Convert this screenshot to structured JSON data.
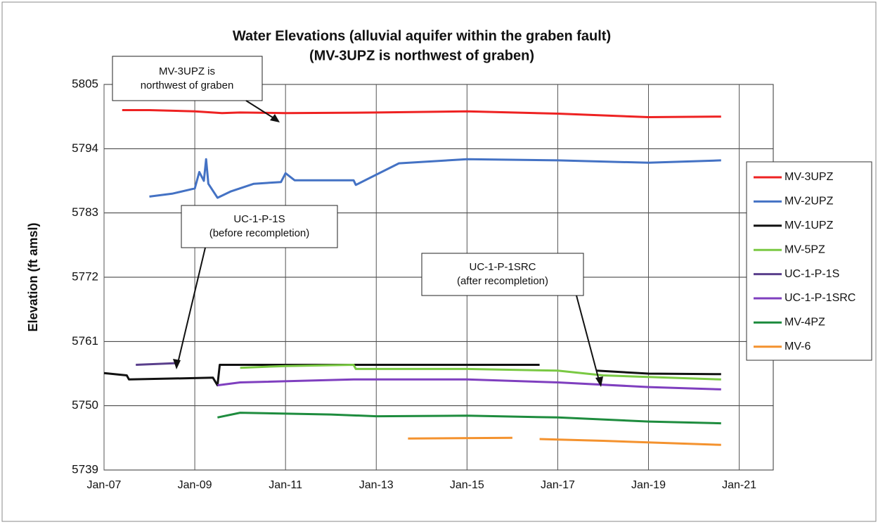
{
  "chart_data": {
    "type": "line",
    "title": "Water Elevations (alluvial aquifer within the graben fault)",
    "subtitle": "(MV-3UPZ is northwest of graben)",
    "y_label": "Elevation (ft amsl)",
    "xlim": [
      2007,
      2021.75
    ],
    "xticks": [
      {
        "value": 2007,
        "label": "Jan-07"
      },
      {
        "value": 2009,
        "label": "Jan-09"
      },
      {
        "value": 2011,
        "label": "Jan-11"
      },
      {
        "value": 2013,
        "label": "Jan-13"
      },
      {
        "value": 2015,
        "label": "Jan-15"
      },
      {
        "value": 2017,
        "label": "Jan-17"
      },
      {
        "value": 2019,
        "label": "Jan-19"
      },
      {
        "value": 2021,
        "label": "Jan-21"
      }
    ],
    "ylim": [
      5739,
      5805
    ],
    "yticks": [
      5739,
      5750,
      5761,
      5772,
      5783,
      5794,
      5805
    ],
    "grid": true,
    "legend": "right",
    "series": [
      {
        "name": "MV-3UPZ",
        "color": "#ee2222",
        "x": [
          2007.4,
          2008,
          2009,
          2009.6,
          2010,
          2011,
          2013,
          2015,
          2017,
          2019,
          2020.6
        ],
        "values": [
          5800.6,
          5800.6,
          5800.4,
          5800.1,
          5800.2,
          5800.1,
          5800.2,
          5800.4,
          5800,
          5799.4,
          5799.5
        ]
      },
      {
        "name": "MV-2UPZ",
        "color": "#4472c4",
        "x": [
          2008,
          2008.5,
          2009,
          2009.1,
          2009.2,
          2009.25,
          2009.3,
          2009.5,
          2009.8,
          2010.3,
          2010.9,
          2011,
          2011.2,
          2012.5,
          2012.55,
          2013.5,
          2015,
          2017,
          2019,
          2020.6
        ],
        "values": [
          5785.8,
          5786.3,
          5787.2,
          5790,
          5788.5,
          5792.2,
          5788,
          5785.6,
          5786.7,
          5788,
          5788.3,
          5789.8,
          5788.6,
          5788.6,
          5787.8,
          5791.5,
          5792.2,
          5792,
          5791.6,
          5792
        ]
      },
      {
        "name": "MV-1UPZ",
        "color": "#111111",
        "x": [
          2007,
          2007.5,
          2007.55,
          2009.4,
          2009.5,
          2009.55,
          2011,
          2013,
          2016.6,
          2017.8,
          2017.85,
          2019,
          2020.6
        ],
        "values": [
          5755.6,
          5755.2,
          5754.5,
          5754.8,
          5753.5,
          5757,
          5757,
          5757,
          5757,
          null,
          5756,
          5755.5,
          5755.4
        ]
      },
      {
        "name": "MV-5PZ",
        "color": "#7ac943",
        "x": [
          2010,
          2011,
          2012.5,
          2012.55,
          2015,
          2017,
          2018,
          2020.6
        ],
        "values": [
          5756.5,
          5756.8,
          5757,
          5756.3,
          5756.3,
          5756,
          5755.2,
          5754.5
        ]
      },
      {
        "name": "UC-1-P-1S",
        "color": "#5a3f8c",
        "x": [
          2007.7,
          2008.6
        ],
        "values": [
          5757,
          5757.3
        ]
      },
      {
        "name": "UC-1-P-1SRC",
        "color": "#7f3fbf",
        "x": [
          2009.5,
          2010,
          2012.5,
          2015,
          2017,
          2019,
          2020.6
        ],
        "values": [
          5753.5,
          5754,
          5754.5,
          5754.5,
          5754,
          5753.2,
          5752.8
        ]
      },
      {
        "name": "MV-4PZ",
        "color": "#1e8c3e",
        "x": [
          2009.5,
          2010,
          2012,
          2013,
          2015,
          2017,
          2019,
          2020.6
        ],
        "values": [
          5748,
          5748.8,
          5748.5,
          5748.2,
          5748.3,
          5748,
          5747.3,
          5747
        ]
      },
      {
        "name": "MV-6",
        "color": "#f4922e",
        "x": [
          2013.7,
          2016,
          2016.3,
          2016.6,
          2018,
          2020.6
        ],
        "values": [
          5744.4,
          5744.5,
          null,
          5744.3,
          5744,
          5743.3
        ]
      }
    ],
    "annotations": [
      {
        "lines": [
          "MV-3UPZ is",
          "northwest of graben"
        ]
      },
      {
        "lines": [
          "UC-1-P-1S",
          "(before recompletion)"
        ]
      },
      {
        "lines": [
          "UC-1-P-1SRC",
          "(after recompletion)"
        ]
      }
    ]
  }
}
